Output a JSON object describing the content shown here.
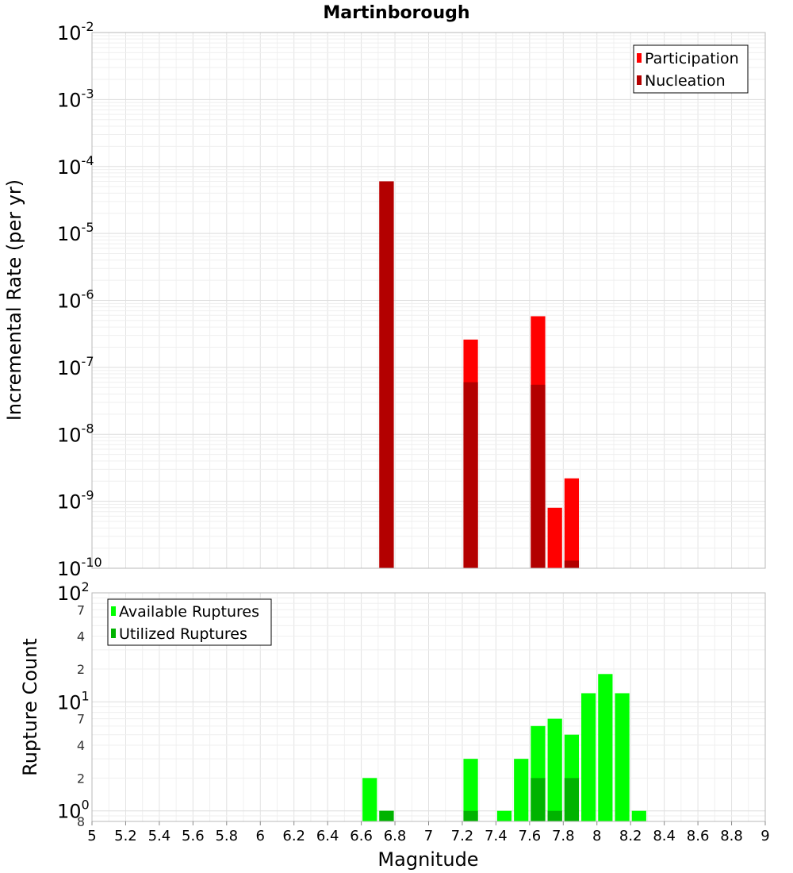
{
  "chart_data": [
    {
      "type": "bar",
      "title": "Martinborough",
      "ylabel": "Incremental Rate (per yr)",
      "xlabel": "",
      "yscale": "log",
      "ylim": [
        1e-10,
        0.01
      ],
      "xlim": [
        5,
        9
      ],
      "bar_width": 0.1,
      "grid": true,
      "legend_position": "top-right",
      "y_tick_labels": [
        {
          "value": 0.01,
          "base": "10",
          "exp": "-2"
        },
        {
          "value": 0.001,
          "base": "10",
          "exp": "-3"
        },
        {
          "value": 0.0001,
          "base": "10",
          "exp": "-4"
        },
        {
          "value": 1e-05,
          "base": "10",
          "exp": "-5"
        },
        {
          "value": 1e-06,
          "base": "10",
          "exp": "-6"
        },
        {
          "value": 1e-07,
          "base": "10",
          "exp": "-7"
        },
        {
          "value": 1e-08,
          "base": "10",
          "exp": "-8"
        },
        {
          "value": 1e-09,
          "base": "10",
          "exp": "-9"
        },
        {
          "value": 1e-10,
          "base": "10",
          "exp": "-10"
        }
      ],
      "series": [
        {
          "name": "Participation",
          "color": "#ff0000",
          "x": [
            6.75,
            7.25,
            7.65,
            7.75,
            7.85
          ],
          "values": [
            6e-05,
            2.6e-07,
            5.8e-07,
            8e-10,
            2.2e-09
          ]
        },
        {
          "name": "Nucleation",
          "color": "#b30000",
          "x": [
            6.75,
            7.25,
            7.65,
            7.85
          ],
          "values": [
            6e-05,
            6e-08,
            5.5e-08,
            1.3e-10
          ]
        }
      ]
    },
    {
      "type": "bar",
      "title": "",
      "ylabel": "Rupture Count",
      "xlabel": "Magnitude",
      "yscale": "log",
      "ylim": [
        0.8,
        100
      ],
      "xlim": [
        5,
        9
      ],
      "bar_width": 0.1,
      "grid": true,
      "legend_position": "top-left",
      "x_ticks": [
        "5",
        "5.2",
        "5.4",
        "5.6",
        "5.8",
        "6",
        "6.2",
        "6.4",
        "6.6",
        "6.8",
        "7",
        "7.2",
        "7.4",
        "7.6",
        "7.8",
        "8",
        "8.2",
        "8.4",
        "8.6",
        "8.8",
        "9"
      ],
      "y_tick_labels": [
        {
          "value": 100,
          "base": "10",
          "exp": "2"
        },
        {
          "value": 70,
          "label": "7"
        },
        {
          "value": 40,
          "label": "4"
        },
        {
          "value": 20,
          "label": "2"
        },
        {
          "value": 10,
          "base": "10",
          "exp": "1"
        },
        {
          "value": 7,
          "label": "7"
        },
        {
          "value": 4,
          "label": "4"
        },
        {
          "value": 2,
          "label": "2"
        },
        {
          "value": 1,
          "base": "10",
          "exp": "0"
        },
        {
          "value": 0.8,
          "label": "8"
        }
      ],
      "series": [
        {
          "name": "Available Ruptures",
          "color": "#00ff00",
          "x": [
            6.65,
            6.75,
            7.25,
            7.45,
            7.55,
            7.65,
            7.75,
            7.85,
            7.95,
            8.05,
            8.15,
            8.25
          ],
          "values": [
            2,
            1,
            3,
            1,
            3,
            6,
            7,
            5,
            12,
            18,
            12,
            1
          ]
        },
        {
          "name": "Utilized Ruptures",
          "color": "#00b300",
          "x": [
            6.75,
            7.25,
            7.65,
            7.75,
            7.85
          ],
          "values": [
            1,
            1,
            2,
            1,
            2
          ]
        }
      ]
    }
  ]
}
